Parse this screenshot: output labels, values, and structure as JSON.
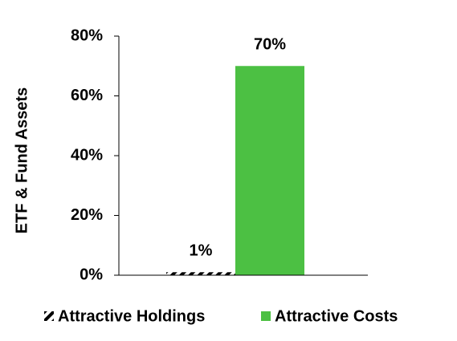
{
  "chart_data": {
    "type": "bar",
    "y_label": "ETF & Fund Assets",
    "categories": [
      null
    ],
    "series": [
      {
        "name": "Attractive Holdings",
        "color": "#000000",
        "hatch": true,
        "values": [
          1
        ],
        "value_labels": [
          "1%"
        ]
      },
      {
        "name": "Attractive Costs",
        "color": "#4cc043",
        "values": [
          70
        ],
        "value_labels": [
          "70%"
        ]
      }
    ],
    "ylim": [
      0,
      80
    ],
    "yticks": [
      {
        "value": 0,
        "label": "0%"
      },
      {
        "value": 20,
        "label": "20%"
      },
      {
        "value": 40,
        "label": "40%"
      },
      {
        "value": 60,
        "label": "60%"
      },
      {
        "value": 80,
        "label": "80%"
      }
    ],
    "grid": false,
    "legend": "bottom"
  }
}
